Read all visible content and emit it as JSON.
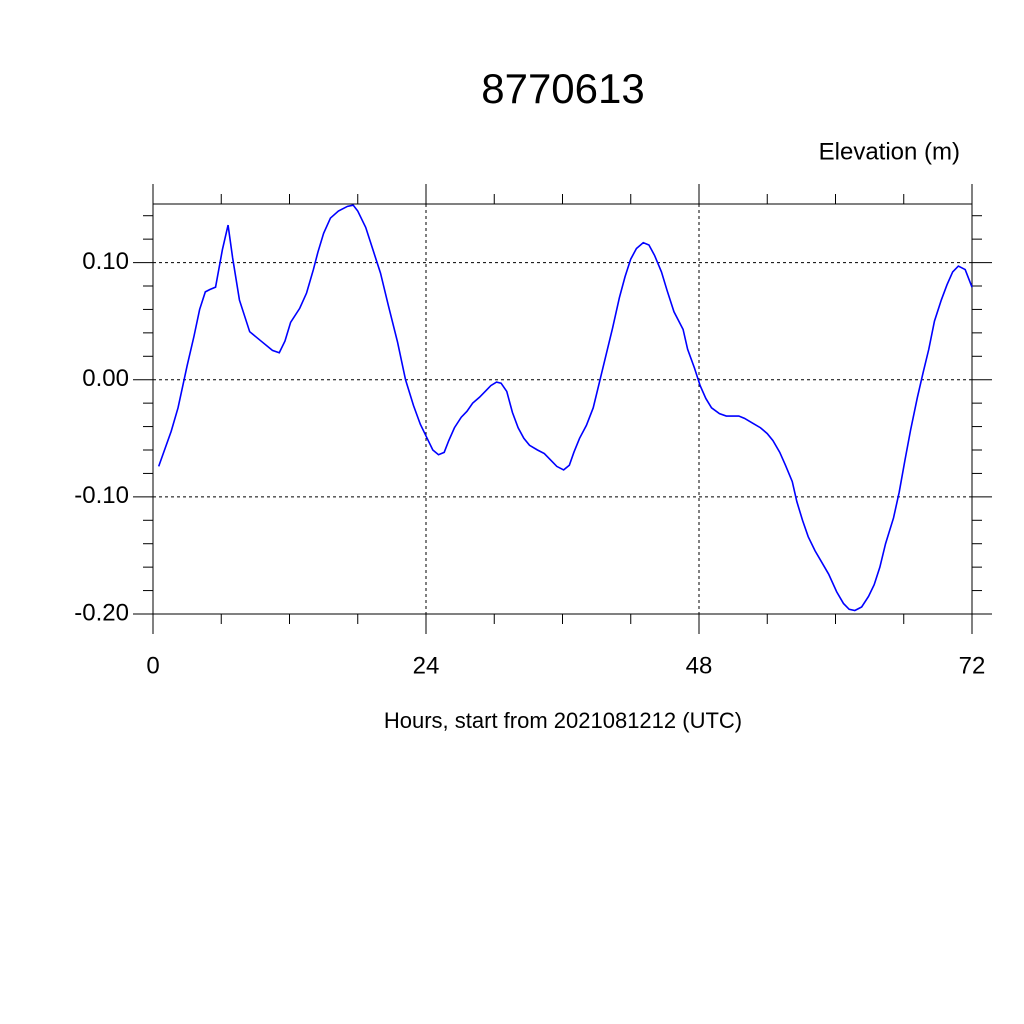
{
  "chart_data": {
    "type": "line",
    "title": "8770613",
    "subtitle": "Elevation (m)",
    "x_label": "Hours, start from 2021081212 (UTC)",
    "xlim": [
      0,
      72
    ],
    "xticks": [
      0,
      24,
      48,
      72
    ],
    "x_minor_ticks": [
      6,
      12,
      18,
      30,
      36,
      42,
      54,
      60,
      66
    ],
    "ylim": [
      -0.2,
      0.15
    ],
    "yticks": [
      {
        "value": -0.2,
        "label": "-0.20"
      },
      {
        "value": -0.1,
        "label": "-0.10"
      },
      {
        "value": 0,
        "label": "0.00"
      },
      {
        "value": 0.1,
        "label": "0.10"
      }
    ],
    "y_minor_ticks": [
      -0.18,
      -0.16,
      -0.14,
      -0.12,
      -0.08,
      -0.06,
      -0.04,
      -0.02,
      0.02,
      0.04,
      0.06,
      0.08,
      0.12,
      0.14
    ],
    "grid": true,
    "x": [
      0.5,
      1.6,
      2.2,
      3.0,
      3.6,
      4.1,
      4.6,
      5.0,
      5.5,
      6.1,
      6.6,
      7.0,
      7.6,
      8.5,
      9.5,
      10.5,
      11.1,
      11.6,
      12.1,
      12.9,
      13.5,
      14.1,
      14.5,
      15.0,
      15.6,
      16.3,
      17.1,
      17.6,
      18.0,
      18.7,
      19.4,
      20.0,
      20.7,
      21.5,
      22.2,
      22.9,
      23.5,
      24.1,
      24.6,
      25.1,
      25.6,
      26.0,
      26.5,
      27.1,
      27.6,
      28.1,
      28.7,
      29.3,
      29.7,
      30.2,
      30.6,
      31.1,
      31.6,
      32.1,
      32.6,
      33.1,
      33.8,
      34.4,
      35.1,
      35.5,
      36.1,
      36.6,
      37.0,
      37.5,
      38.1,
      38.7,
      39.2,
      39.7,
      40.4,
      41.0,
      41.5,
      42.0,
      42.5,
      43.1,
      43.6,
      44.1,
      44.7,
      45.2,
      45.8,
      46.6,
      47.0,
      47.6,
      48.1,
      48.6,
      49.1,
      49.8,
      50.4,
      51.0,
      51.5,
      52.0,
      52.7,
      53.4,
      54.0,
      54.5,
      55.1,
      55.6,
      56.2,
      56.6,
      57.1,
      57.6,
      58.2,
      58.8,
      59.4,
      60.1,
      60.7,
      61.2,
      61.7,
      62.3,
      62.9,
      63.4,
      63.9,
      64.4,
      65.1,
      65.6,
      66.1,
      66.6,
      67.2,
      67.7,
      68.2,
      68.7,
      69.3,
      69.8,
      70.3,
      70.8,
      71.4,
      72.0
    ],
    "series": [
      {
        "color": "#0000ff",
        "values": [
          -0.074,
          -0.044,
          -0.024,
          0.012,
          0.037,
          0.06,
          0.075,
          0.077,
          0.079,
          0.111,
          0.132,
          0.104,
          0.068,
          0.041,
          0.033,
          0.025,
          0.023,
          0.033,
          0.049,
          0.061,
          0.074,
          0.094,
          0.109,
          0.125,
          0.138,
          0.144,
          0.148,
          0.149,
          0.144,
          0.13,
          0.109,
          0.091,
          0.063,
          0.032,
          0.0,
          -0.022,
          -0.038,
          -0.05,
          -0.06,
          -0.064,
          -0.062,
          -0.052,
          -0.041,
          -0.032,
          -0.027,
          -0.02,
          -0.015,
          -0.009,
          -0.005,
          -0.002,
          -0.003,
          -0.01,
          -0.028,
          -0.041,
          -0.05,
          -0.056,
          -0.06,
          -0.063,
          -0.07,
          -0.074,
          -0.077,
          -0.073,
          -0.062,
          -0.05,
          -0.039,
          -0.024,
          -0.004,
          0.016,
          0.044,
          0.07,
          0.088,
          0.103,
          0.112,
          0.117,
          0.115,
          0.106,
          0.092,
          0.076,
          0.058,
          0.043,
          0.026,
          0.01,
          -0.005,
          -0.016,
          -0.024,
          -0.029,
          -0.031,
          -0.031,
          -0.031,
          -0.033,
          -0.037,
          -0.041,
          -0.046,
          -0.052,
          -0.062,
          -0.073,
          -0.087,
          -0.104,
          -0.12,
          -0.134,
          -0.146,
          -0.156,
          -0.166,
          -0.181,
          -0.191,
          -0.196,
          -0.197,
          -0.194,
          -0.185,
          -0.175,
          -0.16,
          -0.14,
          -0.118,
          -0.096,
          -0.069,
          -0.043,
          -0.015,
          0.006,
          0.026,
          0.05,
          0.068,
          0.081,
          0.092,
          0.097,
          0.094,
          0.079
        ]
      }
    ]
  }
}
